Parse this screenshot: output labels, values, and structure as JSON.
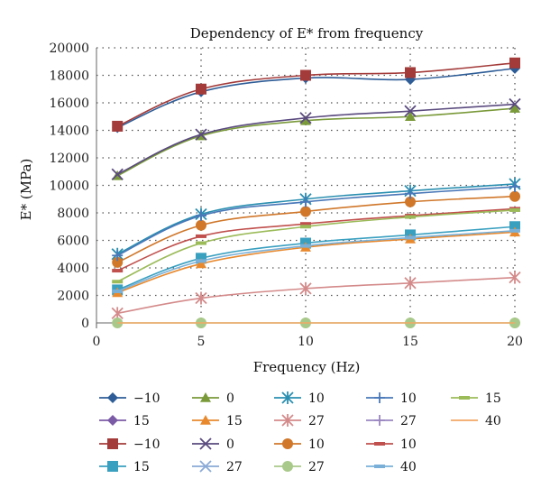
{
  "chart_data": {
    "type": "line",
    "title": "Dependency of E* from frequency",
    "xlabel": "Frequency (Hz)",
    "ylabel": "E* (MPa)",
    "xlim": [
      0,
      20
    ],
    "ylim": [
      0,
      20000
    ],
    "x_ticks": [
      "0",
      "5",
      "10",
      "15",
      "20"
    ],
    "y_ticks": [
      "0",
      "2000",
      "4000",
      "6000",
      "8000",
      "10000",
      "12000",
      "14000",
      "16000",
      "18000",
      "20000"
    ],
    "grid": "dotted",
    "legend_position": "bottom",
    "x": [
      1,
      5,
      10,
      15,
      20
    ],
    "series": [
      {
        "name": "−10",
        "color": "#2e5d97",
        "marker": "diamond",
        "values": [
          14200,
          16800,
          17800,
          17700,
          18500
        ]
      },
      {
        "name": "15",
        "color": "#7b5aa6",
        "marker": "diamond",
        "values": [
          null,
          null,
          null,
          null,
          null
        ]
      },
      {
        "name": "−10",
        "color": "#a33b3a",
        "marker": "square",
        "values": [
          14300,
          17000,
          18000,
          18200,
          18900
        ]
      },
      {
        "name": "15",
        "color": "#3aa0c0",
        "marker": "square",
        "values": [
          2400,
          4700,
          5800,
          6400,
          7000
        ]
      },
      {
        "name": "0",
        "color": "#7a9a3a",
        "marker": "triangle",
        "values": [
          10700,
          13600,
          14700,
          15000,
          15600
        ]
      },
      {
        "name": "15",
        "color": "#e8892e",
        "marker": "triangle",
        "values": [
          2200,
          4300,
          5500,
          6100,
          6600
        ]
      },
      {
        "name": "0",
        "color": "#5a4a7e",
        "marker": "x",
        "values": [
          10800,
          13700,
          14900,
          15400,
          15900
        ]
      },
      {
        "name": "27",
        "color": "#8aaad6",
        "marker": "x",
        "values": [
          null,
          null,
          null,
          null,
          null
        ]
      },
      {
        "name": "10",
        "color": "#2a8fb0",
        "marker": "star",
        "values": [
          5000,
          7900,
          9000,
          9600,
          10100
        ]
      },
      {
        "name": "27",
        "color": "#d48a8a",
        "marker": "star",
        "values": [
          700,
          1800,
          2500,
          2900,
          3300
        ]
      },
      {
        "name": "10",
        "color": "#d0772a",
        "marker": "circle",
        "values": [
          4400,
          7100,
          8100,
          8800,
          9200
        ]
      },
      {
        "name": "27",
        "color": "#a9c98a",
        "marker": "circle",
        "values": [
          0,
          0,
          0,
          0,
          0
        ]
      },
      {
        "name": "10",
        "color": "#4a78b8",
        "marker": "plus",
        "values": [
          4900,
          7800,
          8800,
          9400,
          9900
        ]
      },
      {
        "name": "27",
        "color": "#9a86c0",
        "marker": "plus",
        "values": [
          null,
          null,
          null,
          null,
          null
        ]
      },
      {
        "name": "10",
        "color": "#c0504d",
        "marker": "dash",
        "values": [
          3800,
          6300,
          7200,
          7800,
          8300
        ]
      },
      {
        "name": "40",
        "color": "#7ab0d8",
        "marker": "dash",
        "values": [
          2300,
          4500,
          5600,
          6200,
          6700
        ]
      },
      {
        "name": "15",
        "color": "#9bbb59",
        "marker": "dash",
        "values": [
          3000,
          5800,
          7000,
          7700,
          8200
        ]
      },
      {
        "name": "40",
        "color": "#f2a766",
        "marker": "none",
        "values": [
          0,
          0,
          0,
          0,
          0
        ]
      }
    ]
  }
}
